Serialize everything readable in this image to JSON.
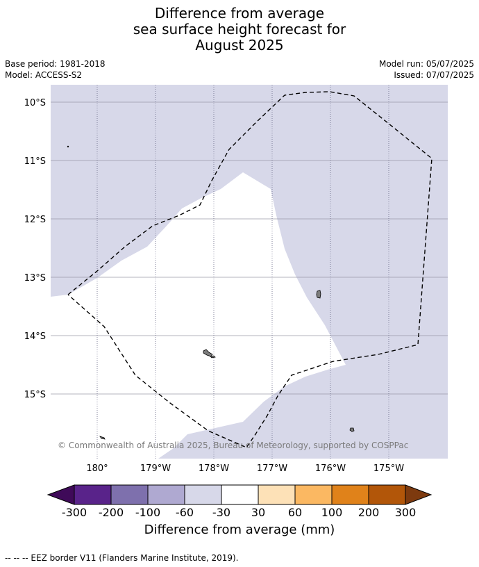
{
  "title_lines": [
    "Difference from average",
    "sea surface height forecast for",
    "August 2025"
  ],
  "meta": {
    "base_period": "Base period: 1981-2018",
    "model": "Model: ACCESS-S2",
    "model_run": "Model run: 05/07/2025",
    "issued": "Issued: 07/07/2025"
  },
  "map": {
    "lat_labels": [
      "10°S",
      "11°S",
      "12°S",
      "13°S",
      "14°S",
      "15°S"
    ],
    "lon_labels": [
      "180°",
      "179°W",
      "178°W",
      "177°W",
      "176°W",
      "175°W"
    ],
    "copyright": "© Commonwealth of Australia 2025, Bureau of Meteorology, supported by COSPPac",
    "fill_colors": {
      "band_-60_-30": "#d7d8e9",
      "band_-30_30": "#ffffff"
    }
  },
  "colorbar": {
    "colors": [
      "#3f0a59",
      "#59238a",
      "#7e70ad",
      "#afa9d1",
      "#d7d8e9",
      "#ffffff",
      "#fde1b7",
      "#fbb862",
      "#e0821a",
      "#b25609",
      "#7d3a0f"
    ],
    "tick_labels": [
      "-300",
      "-200",
      "-100",
      "-60",
      "-30",
      "30",
      "60",
      "100",
      "200",
      "300"
    ],
    "title": "Difference from average (mm)"
  },
  "footnote": "--  --  -- EEZ border V11 (Flanders Marine Institute, 2019)."
}
